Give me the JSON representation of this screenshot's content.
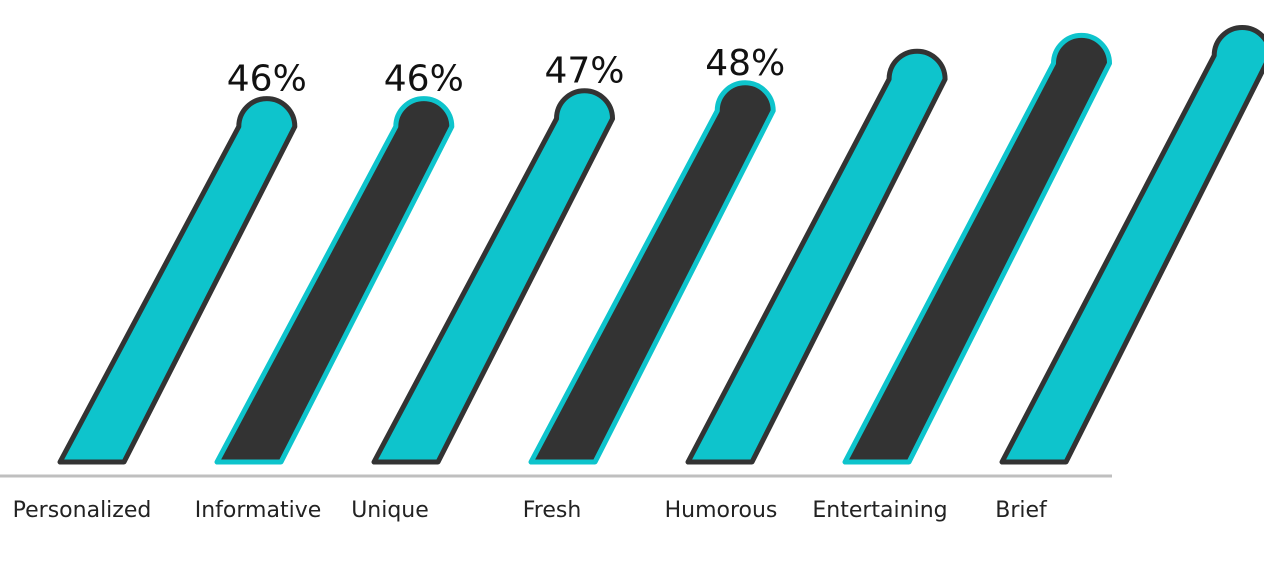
{
  "chart_data": {
    "type": "bar",
    "title": "",
    "xlabel": "",
    "ylabel": "",
    "categories": [
      "Personalized",
      "Informative",
      "Unique",
      "Fresh",
      "Humorous",
      "Entertaining",
      "Brief"
    ],
    "values": [
      46,
      46,
      47,
      48,
      52,
      54,
      55
    ],
    "value_labels": [
      "46%",
      "46%",
      "47%",
      "48%",
      "",
      "",
      ""
    ],
    "ylim": [
      0,
      60
    ],
    "grid": false,
    "legend": "none",
    "bar_style": "slanted rounded-top",
    "colors": {
      "teal": "#0ec4cc",
      "dark": "#333333",
      "baseline": "#bfbfbf",
      "text": "#111111"
    },
    "bar_fills": [
      "teal",
      "dark",
      "teal",
      "dark",
      "teal",
      "dark",
      "teal"
    ],
    "bar_strokes": [
      "dark",
      "teal",
      "dark",
      "teal",
      "dark",
      "teal",
      "dark"
    ]
  }
}
